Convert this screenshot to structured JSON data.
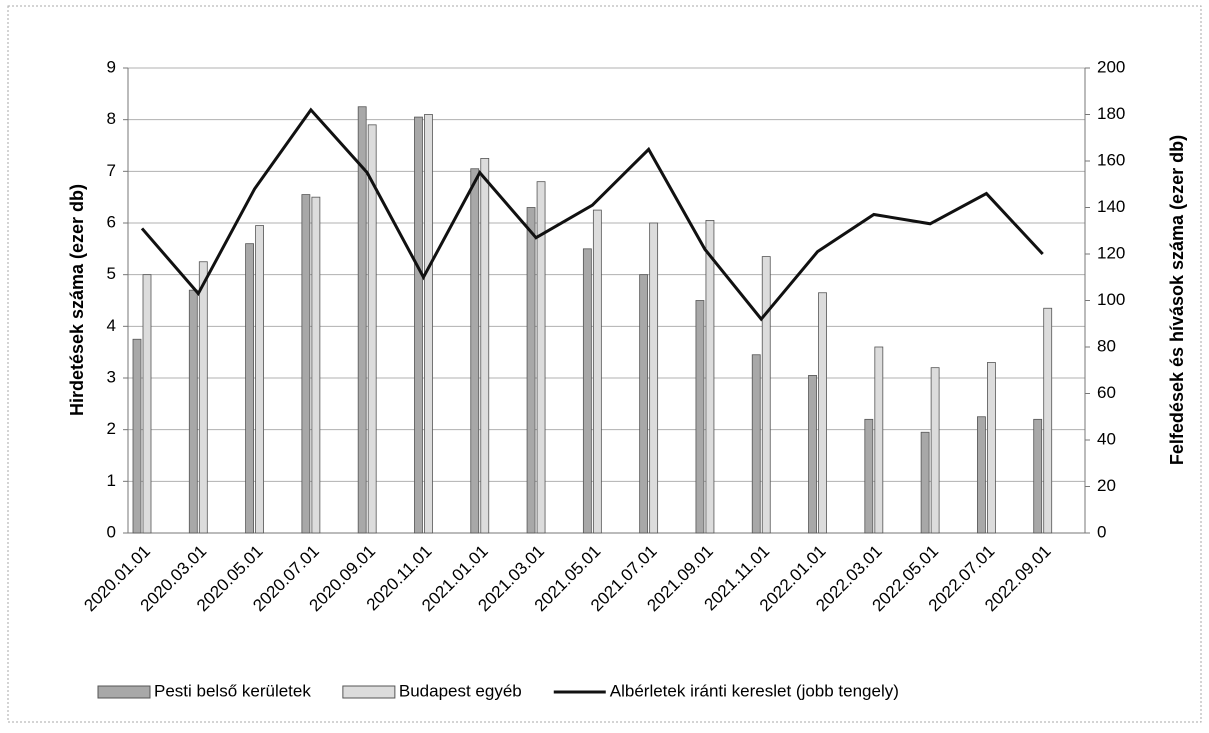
{
  "chart_data": {
    "type": "bar_line",
    "y_label": "Hirdetések száma (ezer db)",
    "y2_label": "Felfedések és hívások száma (ezer db)",
    "categories": [
      "2020.01.01",
      "2020.03.01",
      "2020.05.01",
      "2020.07.01",
      "2020.09.01",
      "2020.11.01",
      "2021.01.01",
      "2021.03.01",
      "2021.05.01",
      "2021.07.01",
      "2021.09.01",
      "2021.11.01",
      "2022.01.01",
      "2022.03.01",
      "2022.05.01",
      "2022.07.01",
      "2022.09.01"
    ],
    "series": [
      {
        "name": "Pesti belső kerületek",
        "type": "bar",
        "color": "#a8a8a8",
        "values": [
          3.75,
          4.7,
          5.6,
          6.55,
          8.25,
          8.05,
          7.05,
          6.3,
          5.5,
          5.0,
          4.5,
          3.45,
          3.05,
          2.2,
          1.95,
          2.25,
          2.2
        ]
      },
      {
        "name": "Budapest egyéb",
        "type": "bar",
        "color": "#dcdcdc",
        "values": [
          5.0,
          5.25,
          5.95,
          6.5,
          7.9,
          8.1,
          7.25,
          6.8,
          6.25,
          6.0,
          6.05,
          5.35,
          4.65,
          3.6,
          3.2,
          3.3,
          4.35
        ]
      },
      {
        "name": "Albérletek iránti kereslet (jobb tengely)",
        "type": "line",
        "axis": "y2",
        "color": "#111111",
        "values": [
          131,
          103,
          148,
          182,
          155,
          110,
          155,
          127,
          141,
          165,
          122,
          92,
          121,
          137,
          133,
          146,
          120
        ]
      }
    ],
    "ylim": [
      0,
      9
    ],
    "yticks": [
      0,
      1,
      2,
      3,
      4,
      5,
      6,
      7,
      8,
      9
    ],
    "y2lim": [
      0,
      200
    ],
    "y2ticks": [
      0,
      20,
      40,
      60,
      80,
      100,
      120,
      140,
      160,
      180,
      200
    ],
    "grid": true,
    "legend": "bottom"
  }
}
